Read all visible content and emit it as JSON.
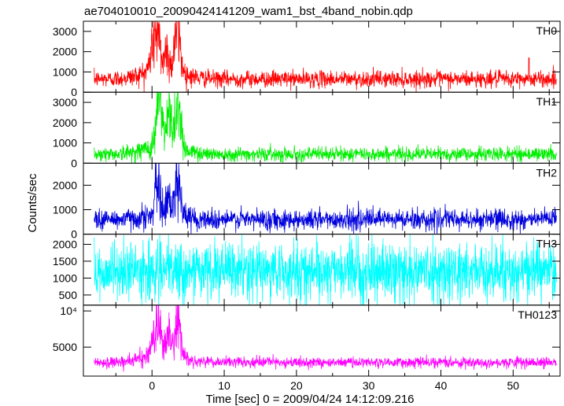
{
  "title": "ae704010010_20090424141209_wam1_bst_4band_nobin.qdp",
  "xlabel": "Time [sec] 0 = 2009/04/24 14:12:09.216",
  "ylabel": "Counts/sec",
  "chart_data": {
    "type": "line",
    "title": "ae704010010_20090424141209_wam1_bst_4band_nobin.qdp",
    "xlabel": "Time [sec] 0 = 2009/04/24 14:12:09.216",
    "ylabel": "Counts/sec",
    "xlim": [
      -9.5,
      56.5
    ],
    "x_ticks": [
      0,
      10,
      20,
      30,
      40,
      50
    ],
    "x_tick_labels": [
      "0",
      "10",
      "20",
      "30",
      "40",
      "50"
    ],
    "data_range": [
      -8,
      56
    ],
    "panels": [
      {
        "name": "TH0",
        "color": "#ff0000",
        "ylim": [
          0,
          3500
        ],
        "y_ticks": [
          0,
          1000,
          2000,
          3000
        ],
        "y_tick_labels": [
          "0",
          "1000",
          "2000",
          "3000"
        ],
        "baseline": 650,
        "noise": 200,
        "peaks": [
          [
            0.5,
            2000,
            0.5
          ],
          [
            2.0,
            900,
            0.3
          ],
          [
            3.5,
            2200,
            0.4
          ]
        ],
        "wide_bump": [
          1.5,
          500,
          2.5
        ],
        "spikes": [
          [
            52.2,
            1700
          ]
        ]
      },
      {
        "name": "TH1",
        "color": "#00ee00",
        "ylim": [
          0,
          3500
        ],
        "y_ticks": [
          0,
          1000,
          2000,
          3000
        ],
        "y_tick_labels": [
          "0",
          "1000",
          "2000",
          "3000"
        ],
        "baseline": 450,
        "noise": 170,
        "peaks": [
          [
            1.0,
            2300,
            0.4
          ],
          [
            2.4,
            1700,
            0.3
          ],
          [
            3.6,
            2400,
            0.4
          ]
        ],
        "wide_bump": [
          1.5,
          400,
          2.5
        ],
        "spikes": []
      },
      {
        "name": "TH2",
        "color": "#0000dd",
        "ylim": [
          0,
          2900
        ],
        "y_ticks": [
          0,
          1000,
          2000
        ],
        "y_tick_labels": [
          "0",
          "1000",
          "2000"
        ],
        "baseline": 600,
        "noise": 210,
        "peaks": [
          [
            0.8,
            1500,
            0.3
          ],
          [
            2.3,
            900,
            0.3
          ],
          [
            3.6,
            1700,
            0.35
          ]
        ],
        "wide_bump": [
          1.5,
          200,
          2.5
        ],
        "spikes": []
      },
      {
        "name": "TH3",
        "color": "#00ffff",
        "ylim": [
          200,
          2300
        ],
        "y_ticks": [
          500,
          1000,
          1500,
          2000
        ],
        "y_tick_labels": [
          "500",
          "1000",
          "1500",
          "2000"
        ],
        "baseline": 1200,
        "noise": 420,
        "peaks": [],
        "wide_bump": [
          0,
          0,
          1
        ],
        "spikes": []
      },
      {
        "name": "TH0123",
        "color": "#ff00ff",
        "ylim": [
          1000,
          10800
        ],
        "y_ticks": [
          5000,
          10000
        ],
        "y_tick_labels": [
          "5000",
          "10⁴"
        ],
        "baseline": 2900,
        "noise": 350,
        "peaks": [
          [
            0.7,
            4500,
            0.5
          ],
          [
            2.3,
            2800,
            0.3
          ],
          [
            3.6,
            5500,
            0.35
          ]
        ],
        "wide_bump": [
          1.5,
          1200,
          2.5
        ],
        "spikes": [
          [
            19.5,
            2400
          ]
        ]
      }
    ]
  }
}
